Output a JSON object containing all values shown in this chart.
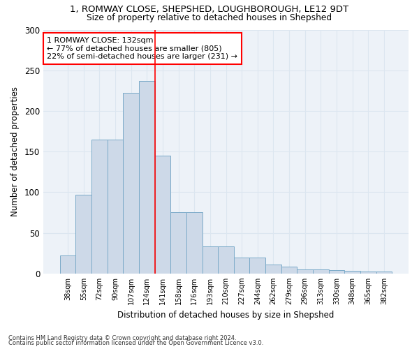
{
  "title1": "1, ROMWAY CLOSE, SHEPSHED, LOUGHBOROUGH, LE12 9DT",
  "title2": "Size of property relative to detached houses in Shepshed",
  "xlabel": "Distribution of detached houses by size in Shepshed",
  "ylabel": "Number of detached properties",
  "categories": [
    "38sqm",
    "55sqm",
    "72sqm",
    "90sqm",
    "107sqm",
    "124sqm",
    "141sqm",
    "158sqm",
    "176sqm",
    "193sqm",
    "210sqm",
    "227sqm",
    "244sqm",
    "262sqm",
    "279sqm",
    "296sqm",
    "313sqm",
    "330sqm",
    "348sqm",
    "365sqm",
    "382sqm"
  ],
  "values": [
    22,
    97,
    165,
    165,
    222,
    237,
    145,
    75,
    75,
    33,
    33,
    20,
    20,
    11,
    8,
    5,
    5,
    4,
    3,
    2,
    2
  ],
  "bar_color": "#cdd9e8",
  "bar_edge_color": "#7aaac8",
  "red_line_x": 5.5,
  "annotation_text": "1 ROMWAY CLOSE: 132sqm\n← 77% of detached houses are smaller (805)\n22% of semi-detached houses are larger (231) →",
  "annotation_box_color": "white",
  "annotation_box_edge_color": "red",
  "grid_color": "#dce6f0",
  "background_color": "#edf2f8",
  "footer1": "Contains HM Land Registry data © Crown copyright and database right 2024.",
  "footer2": "Contains public sector information licensed under the Open Government Licence v3.0.",
  "ylim": [
    0,
    300
  ],
  "yticks": [
    0,
    50,
    100,
    150,
    200,
    250,
    300
  ]
}
